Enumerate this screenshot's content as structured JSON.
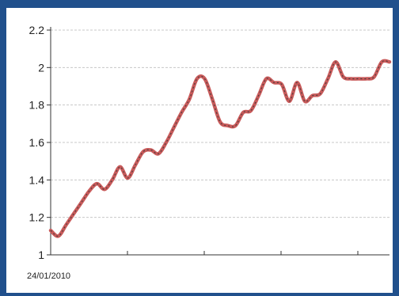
{
  "chart_data": {
    "type": "line",
    "title": "",
    "xlabel": "",
    "ylabel": "",
    "ylim": [
      1,
      2.2
    ],
    "yticks": [
      "1",
      "1.2",
      "1.4",
      "1.6",
      "1.8",
      "2",
      "2.2"
    ],
    "x_start_label": "24/01/2010",
    "grid": "horizontal dashed",
    "colors": {
      "line": "#c85a5a",
      "line_shadow": "#3a3a3a",
      "grid": "#c8c8c8",
      "axis": "#333333",
      "frame": "#21508c"
    },
    "series": [
      {
        "values": [
          1.13,
          1.1,
          1.16,
          1.22,
          1.28,
          1.34,
          1.38,
          1.35,
          1.4,
          1.47,
          1.41,
          1.48,
          1.55,
          1.56,
          1.54,
          1.6,
          1.68,
          1.76,
          1.83,
          1.94,
          1.94,
          1.83,
          1.71,
          1.69,
          1.69,
          1.76,
          1.77,
          1.85,
          1.94,
          1.92,
          1.91,
          1.82,
          1.92,
          1.82,
          1.85,
          1.86,
          1.94,
          2.03,
          1.95,
          1.94,
          1.94,
          1.94,
          1.95,
          2.03,
          2.03
        ]
      }
    ]
  }
}
